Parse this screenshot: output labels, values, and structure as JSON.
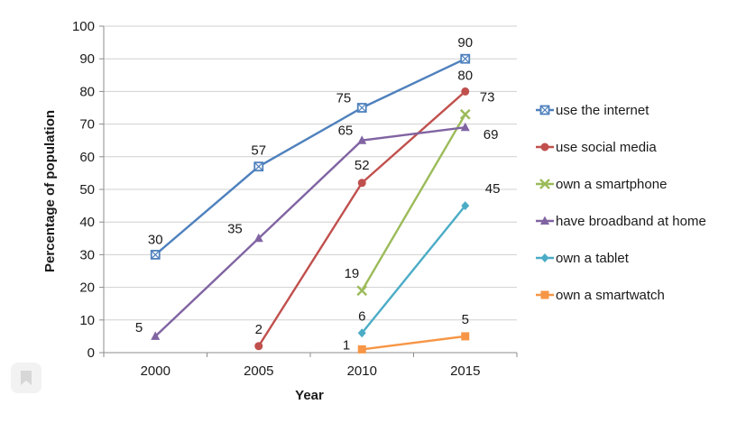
{
  "chart_data": {
    "type": "line",
    "title": "",
    "xlabel": "Year",
    "ylabel": "Percentage of population",
    "categories": [
      "2000",
      "2005",
      "2010",
      "2015"
    ],
    "ylim": [
      0,
      100
    ],
    "yticks": [
      "0",
      "10",
      "20",
      "30",
      "40",
      "50",
      "60",
      "70",
      "80",
      "90",
      "100"
    ],
    "grid": true,
    "legend_position": "right",
    "series": [
      {
        "name": "use the internet",
        "color": "#4f81bd",
        "marker": "square-cross",
        "values": [
          30,
          57,
          75,
          90
        ],
        "labels": [
          "30",
          "57",
          "75",
          "90"
        ]
      },
      {
        "name": "use social media",
        "color": "#c0504d",
        "marker": "circle",
        "values": [
          null,
          2,
          52,
          80
        ],
        "labels": [
          "",
          "2",
          "52",
          "80"
        ]
      },
      {
        "name": "own a smartphone",
        "color": "#9bbb59",
        "marker": "x",
        "values": [
          null,
          null,
          19,
          73
        ],
        "labels": [
          "",
          "",
          "19",
          "73"
        ]
      },
      {
        "name": "have broadband at home",
        "color": "#8064a2",
        "marker": "triangle",
        "values": [
          5,
          35,
          65,
          69
        ],
        "labels": [
          "5",
          "35",
          "65",
          "69"
        ]
      },
      {
        "name": "own a tablet",
        "color": "#4bacc6",
        "marker": "diamond",
        "values": [
          null,
          null,
          6,
          45
        ],
        "labels": [
          "",
          "",
          "6",
          "45"
        ]
      },
      {
        "name": "own a smartwatch",
        "color": "#f79646",
        "marker": "square",
        "values": [
          null,
          null,
          1,
          5
        ],
        "labels": [
          "",
          "",
          "1",
          "5"
        ]
      }
    ]
  },
  "ui": {
    "bookmark_icon": "bookmark-icon"
  }
}
